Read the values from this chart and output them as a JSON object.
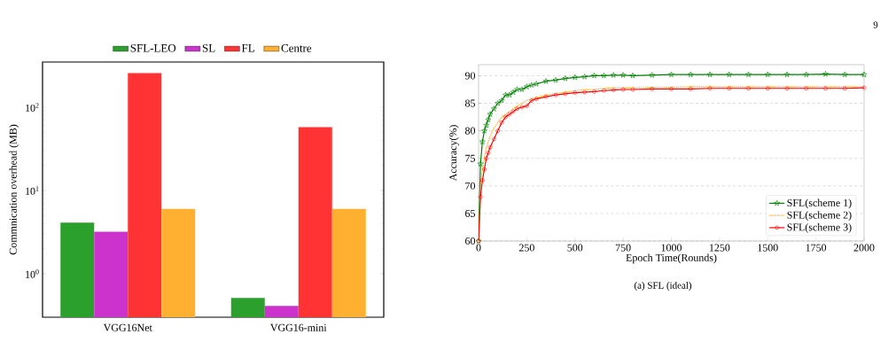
{
  "chart_data": [
    {
      "type": "bar",
      "ylabel": "Commnication overhead (MB)",
      "categories": [
        "VGG16Net",
        "VGG16-mini"
      ],
      "log": true,
      "ylim": [
        0.3,
        350
      ],
      "yticks": [
        {
          "value": 1,
          "label": "10$^{0}$"
        },
        {
          "value": 10,
          "label": "10$^{1}$"
        },
        {
          "value": 100,
          "label": "10$^{2}$"
        }
      ],
      "legend": "top",
      "series": [
        {
          "name": "SFL-LEO",
          "color": "#2ca02c",
          "values": [
            4.1,
            0.51
          ]
        },
        {
          "name": "SL",
          "color": "#cc33cc",
          "values": [
            3.2,
            0.41
          ]
        },
        {
          "name": "FL",
          "color": "#ff3333",
          "values": [
            258,
            57.6
          ]
        },
        {
          "name": "Centre",
          "color": "#ffb030",
          "values": [
            6.0,
            6.0
          ]
        }
      ]
    },
    {
      "type": "line",
      "xlabel": "Epoch Time(Rounds)",
      "ylabel": "Accuracy(%)",
      "xlim": [
        0,
        2000
      ],
      "ylim": [
        60,
        92
      ],
      "xticks": [
        0,
        250,
        500,
        750,
        1000,
        1250,
        1500,
        1750,
        2000
      ],
      "yticks": [
        60,
        65,
        70,
        75,
        80,
        85,
        90
      ],
      "grid": "y",
      "legend": "bottom right",
      "annotations": [
        "(a) SFL (ideal)",
        "9"
      ],
      "x": [
        0,
        10,
        20,
        30,
        40,
        50,
        60,
        80,
        100,
        120,
        140,
        160,
        180,
        200,
        225,
        250,
        275,
        300,
        350,
        400,
        450,
        500,
        550,
        600,
        650,
        700,
        750,
        800,
        900,
        1000,
        1100,
        1200,
        1300,
        1400,
        1500,
        1600,
        1700,
        1800,
        1900,
        2000
      ],
      "series": [
        {
          "name": "SFL(scheme 1)",
          "color": "#008000",
          "marker": "star",
          "line_style": "solid",
          "values": [
            60,
            74,
            78,
            80,
            81,
            82,
            83,
            84,
            85,
            85.5,
            86.5,
            86.5,
            87,
            87.5,
            87.5,
            88,
            88.3,
            88.5,
            89,
            89.2,
            89.5,
            89.7,
            89.8,
            90,
            90,
            90.1,
            90.1,
            90,
            90.1,
            90.2,
            90.2,
            90.2,
            90.2,
            90.2,
            90.2,
            90.2,
            90.2,
            90.3,
            90.2,
            90.2
          ]
        },
        {
          "name": "SFL(scheme 2)",
          "color": "#ffa500",
          "marker": "none",
          "line_style": "dotted",
          "values": [
            60,
            70,
            73,
            75,
            77,
            78,
            79,
            80.5,
            81.5,
            82.5,
            83,
            83.5,
            84,
            84.5,
            85,
            85.5,
            85.8,
            86,
            86.5,
            86.8,
            87,
            87.3,
            87.5,
            87.5,
            87.7,
            87.8,
            87.8,
            87.8,
            87.9,
            87.9,
            88,
            88,
            88,
            88,
            88,
            88,
            88,
            88,
            88,
            88
          ]
        },
        {
          "name": "SFL(scheme 3)",
          "color": "#ff0000",
          "marker": "circle",
          "line_style": "solid",
          "values": [
            60,
            68,
            71,
            73,
            75,
            76,
            77,
            78.5,
            80,
            81.5,
            82.5,
            83,
            83.5,
            84,
            84.3,
            84.5,
            85.5,
            85.8,
            86.2,
            86.5,
            86.7,
            86.9,
            87,
            87.1,
            87.3,
            87.4,
            87.5,
            87.5,
            87.6,
            87.6,
            87.6,
            87.7,
            87.7,
            87.7,
            87.7,
            87.7,
            87.7,
            87.7,
            87.7,
            87.8
          ]
        }
      ]
    }
  ]
}
